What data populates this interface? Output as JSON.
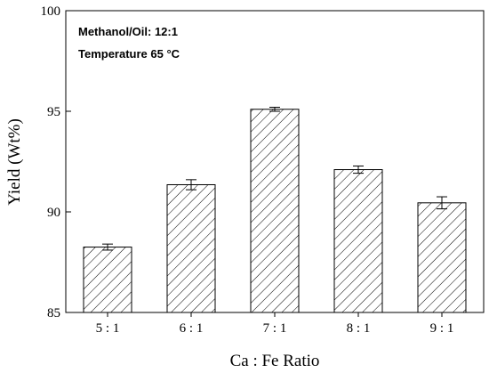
{
  "chart_data": {
    "type": "bar",
    "categories": [
      "5 : 1",
      "6 : 1",
      "7 : 1",
      "8 : 1",
      "9 : 1"
    ],
    "values": [
      88.25,
      91.35,
      95.1,
      92.1,
      90.45
    ],
    "errors": [
      0.15,
      0.25,
      0.1,
      0.18,
      0.3
    ],
    "title": "",
    "xlabel": "Ca : Fe Ratio",
    "ylabel": "Yield (Wt%)",
    "ylim": [
      85,
      100
    ],
    "yticks": [
      85,
      90,
      95,
      100
    ],
    "grid": false,
    "bar_pattern": "diagonal-hatch",
    "annotations": [
      "Methanol/Oil: 12:1",
      "Temperature 65 °C"
    ]
  }
}
